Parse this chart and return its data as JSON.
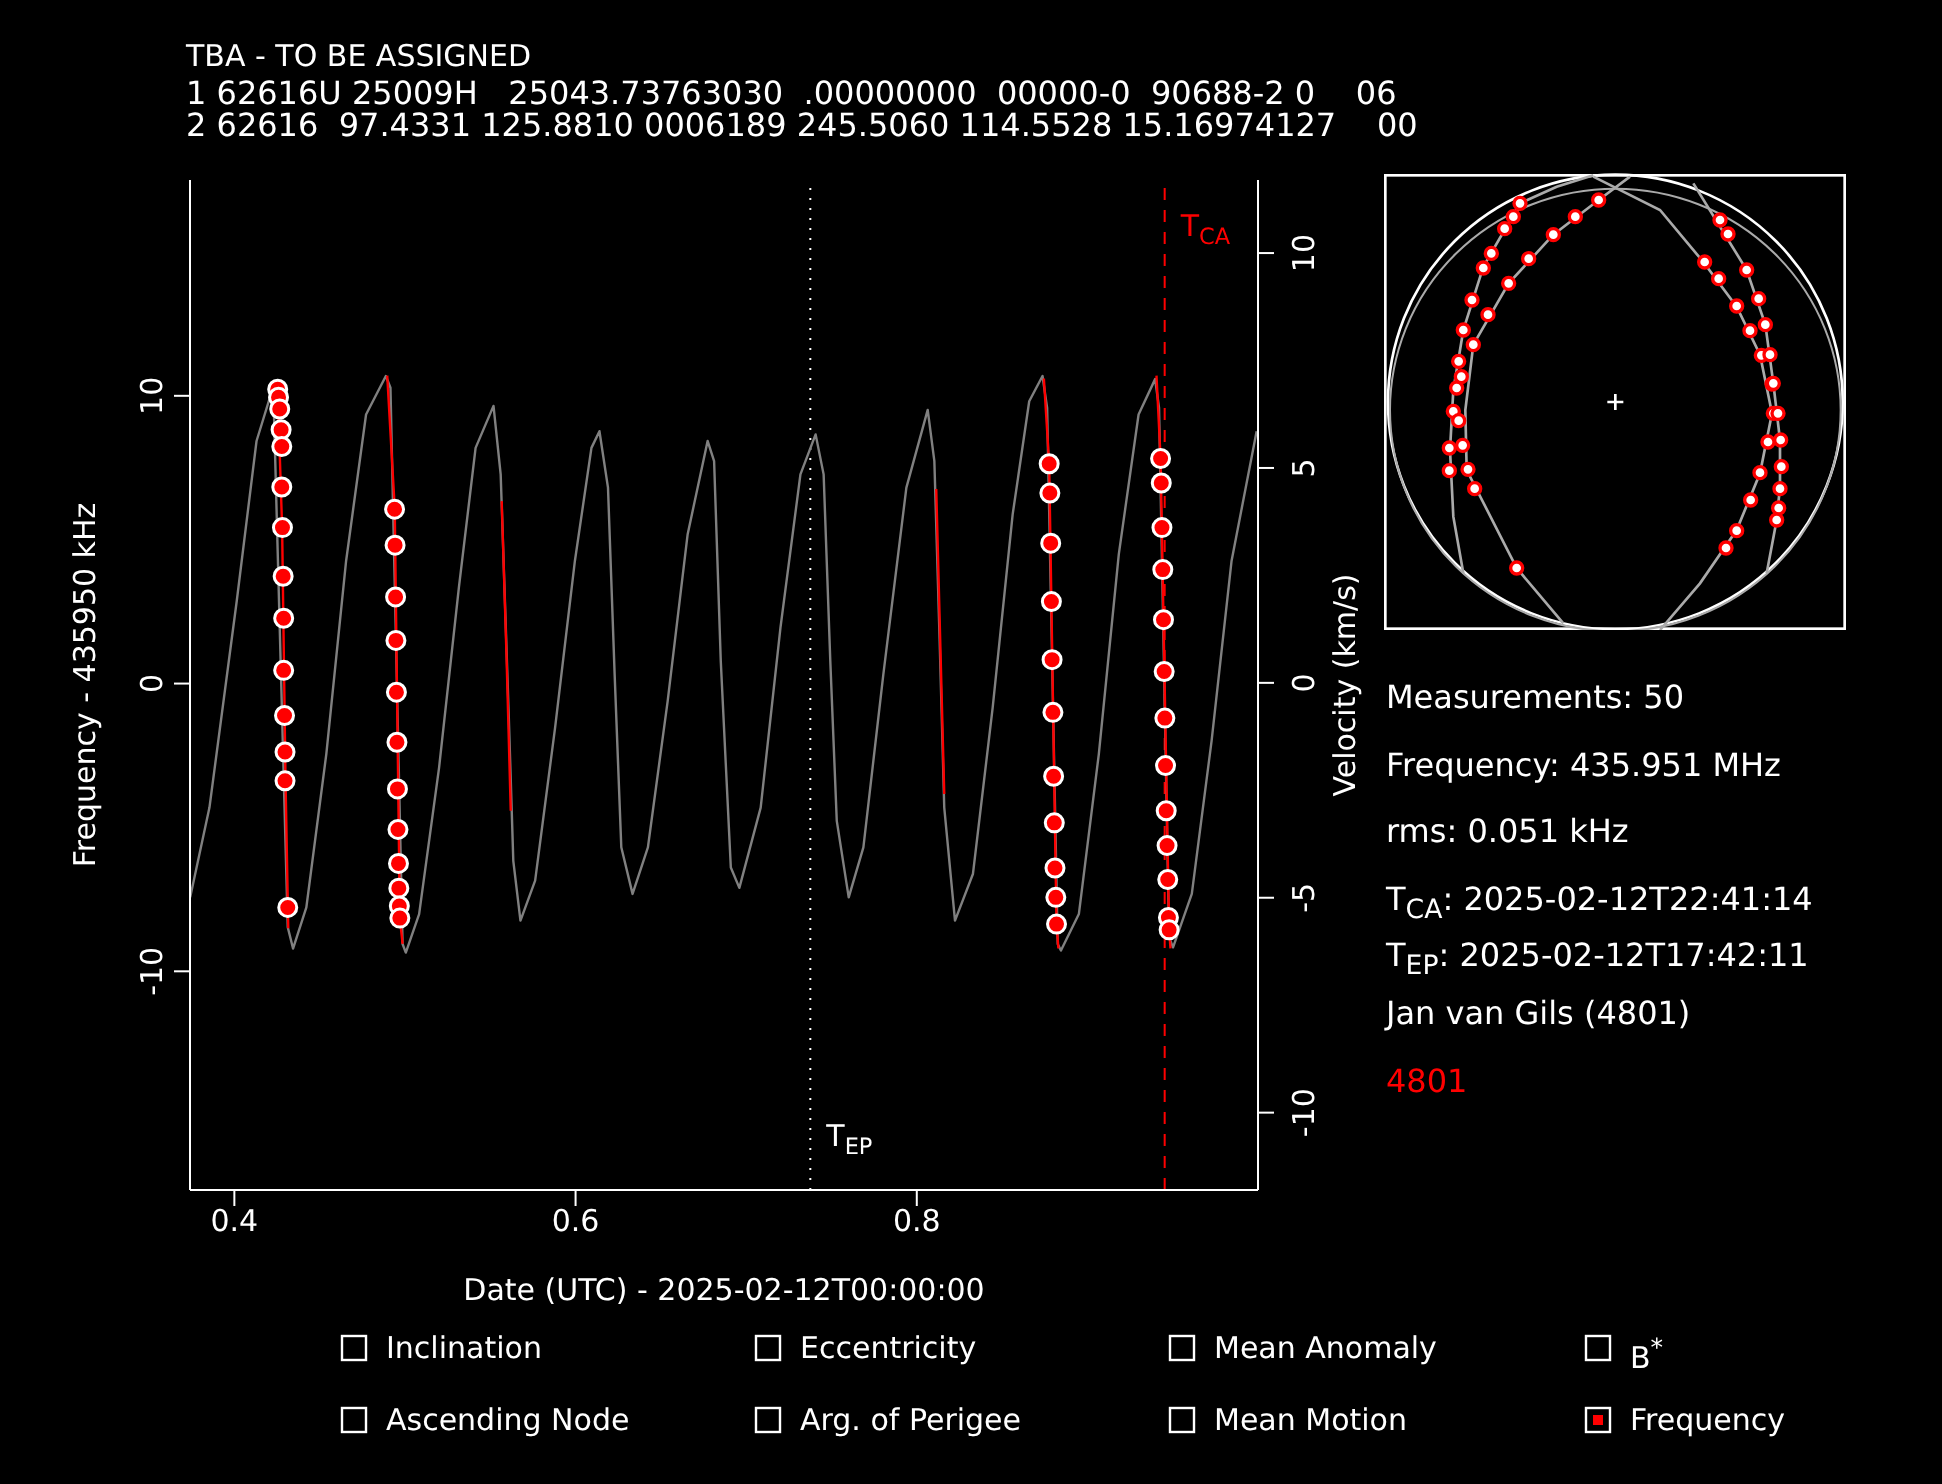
{
  "chart_data": {
    "type": "line",
    "title": "TBA - TO BE ASSIGNED",
    "xlabel": "Date (UTC) - 2025-02-12T00:00:00",
    "ylabel": "Frequency - 435950 kHz",
    "y2label": "Velocity (km/s)",
    "xlim": [
      0.374,
      1.0
    ],
    "xticks": [
      0.4,
      0.6,
      0.8
    ],
    "ylim": [
      -17.6,
      17.5
    ],
    "yticks": [
      -10,
      0,
      10
    ],
    "y2lim": [
      -11.8,
      11.7
    ],
    "y2ticks": [
      -10,
      -5,
      0,
      5,
      10
    ],
    "series": [
      {
        "type": "line",
        "color": "#808080",
        "marker": "none",
        "x": [
          0.3741,
          0.3854,
          0.4014,
          0.413,
          0.4228,
          0.4313,
          0.4344,
          0.4422,
          0.4539,
          0.4655,
          0.4772,
          0.4888,
          0.4915,
          0.4986,
          0.5005,
          0.5083,
          0.52,
          0.5316,
          0.5414,
          0.5519,
          0.5561,
          0.5608,
          0.5635,
          0.5677,
          0.5763,
          0.588,
          0.5996,
          0.6093,
          0.614,
          0.619,
          0.6229,
          0.6268,
          0.6334,
          0.6424,
          0.654,
          0.6657,
          0.6774,
          0.6812,
          0.6851,
          0.691,
          0.696,
          0.7085,
          0.7201,
          0.7318,
          0.7407,
          0.7454,
          0.7493,
          0.7531,
          0.7601,
          0.7687,
          0.7804,
          0.7939,
          0.8064,
          0.8103,
          0.8134,
          0.8161,
          0.8224,
          0.8329,
          0.8445,
          0.8562,
          0.8659,
          0.8737,
          0.8764,
          0.8826,
          0.8845,
          0.895,
          0.9067,
          0.9184,
          0.93,
          0.9397,
          0.942,
          0.9479,
          0.9502,
          0.9612,
          0.9728,
          0.9845,
          0.9992
        ],
        "values": [
          -7.43,
          -4.31,
          2.87,
          8.43,
          10.32,
          -8.47,
          -9.21,
          -7.78,
          -2.45,
          4.26,
          9.35,
          10.69,
          10.28,
          -9.05,
          -9.35,
          -8.01,
          -2.92,
          3.33,
          8.19,
          9.65,
          7.27,
          -1.06,
          -6.16,
          -8.24,
          -6.85,
          -1.53,
          4.26,
          8.19,
          8.77,
          6.81,
          0.32,
          -5.69,
          -7.31,
          -5.69,
          -0.6,
          5.19,
          8.43,
          7.73,
          0.79,
          -6.39,
          -7.1,
          -4.31,
          1.94,
          7.27,
          8.66,
          7.27,
          0.79,
          -4.77,
          -7.43,
          -5.69,
          0.32,
          6.81,
          9.51,
          7.73,
          1.48,
          -4.31,
          -8.24,
          -6.62,
          -0.83,
          5.88,
          9.81,
          10.69,
          9.58,
          -9.05,
          -9.28,
          -8.01,
          -2.45,
          4.49,
          9.35,
          10.58,
          9.58,
          -8.82,
          -9.17,
          -7.31,
          -1.99,
          4.26,
          8.77
        ]
      },
      {
        "type": "line",
        "color": "#ff0000",
        "marker": "none",
        "x": [
          0.4254,
          0.428,
          0.43,
          0.4316,
          0.46,
          0.4896,
          0.494,
          0.497,
          0.4986,
          0.53,
          0.5567,
          0.5595,
          0.562,
          0.7,
          0.8114,
          0.8161,
          0.85,
          0.8745,
          0.8776,
          0.8819,
          0.883,
          0.91,
          0.9405,
          0.9429,
          0.9479,
          0.9487
        ],
        "values": [
          10.2,
          5.4,
          -3.4,
          -8.5,
          null,
          10.7,
          6.1,
          -8.15,
          -9.05,
          null,
          6.34,
          1.0,
          -4.42,
          null,
          6.76,
          -3.84,
          null,
          10.6,
          7.64,
          -8.36,
          -9.2,
          null,
          10.7,
          7.82,
          -8.56,
          -9.2
        ]
      },
      {
        "type": "scatter",
        "color": "#ff0000",
        "marker": "circle",
        "x": [
          0.4254,
          0.4259,
          0.4266,
          0.4274,
          0.4278,
          0.4278,
          0.4282,
          0.4286,
          0.4289,
          0.4289,
          0.4294,
          0.4297,
          0.4297,
          0.4313,
          0.4939,
          0.4942,
          0.4945,
          0.4947,
          0.495,
          0.4953,
          0.4956,
          0.4959,
          0.4962,
          0.4964,
          0.4967,
          0.497,
          0.8776,
          0.878,
          0.8785,
          0.8789,
          0.8793,
          0.8798,
          0.8802,
          0.8806,
          0.881,
          0.8815,
          0.8819,
          0.9429,
          0.9433,
          0.9437,
          0.9442,
          0.9446,
          0.945,
          0.9454,
          0.9458,
          0.9462,
          0.9467,
          0.9471,
          0.9475,
          0.9479
        ],
        "values": [
          10.23,
          9.95,
          9.54,
          8.82,
          8.24,
          6.83,
          5.42,
          3.73,
          2.27,
          0.46,
          -1.11,
          -2.38,
          -3.38,
          -7.78,
          6.06,
          4.81,
          3.01,
          1.5,
          -0.3,
          -2.04,
          -3.66,
          -5.07,
          -6.25,
          -7.11,
          -7.73,
          -8.15,
          7.64,
          6.62,
          4.88,
          2.85,
          0.83,
          -1.0,
          -3.22,
          -4.84,
          -6.41,
          -7.43,
          -8.36,
          7.82,
          6.97,
          5.42,
          3.96,
          2.22,
          0.42,
          -1.2,
          -2.85,
          -4.42,
          -5.63,
          -6.81,
          -8.13,
          -8.56
        ]
      }
    ],
    "ref_lines": [
      {
        "axis": "x",
        "value": 0.7376,
        "label": "T$_{EP}$",
        "color": "#ffffff",
        "line_style": "dotted"
      },
      {
        "axis": "x",
        "value": 0.9453,
        "label": "T$_{CA}$",
        "color": "#ff0000",
        "line_style": "dashed"
      }
    ],
    "annotations": [
      "1 62616U 25009H   25043.73763030  .00000000  00000-0  90688-2 0    06",
      "2 62616  97.4331 125.8810 0006189 245.5060 114.5528 15.16974127    00",
      "Measurements: 50",
      "Frequency: 435.951 MHz",
      "rms: 0.051 kHz",
      "T$_{CA}$: 2025-02-12T22:41:14",
      "T$_{EP}$: 2025-02-12T17:42:11",
      "Jan van Gils (4801)",
      "4801",
      "Inclination",
      "Eccentricity",
      "Mean Anomaly",
      "B$^{*}$",
      "Ascending Node",
      "Arg. of Perigee",
      "Mean Motion",
      "Frequency"
    ]
  }
}
